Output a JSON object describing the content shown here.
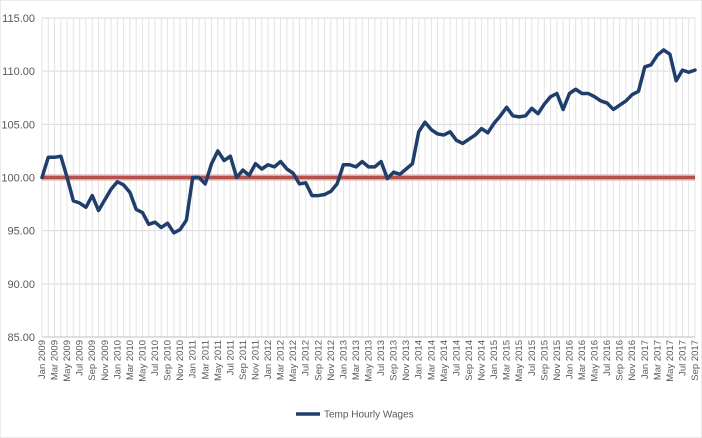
{
  "chart_data": {
    "type": "line",
    "title": "",
    "xlabel": "",
    "ylabel": "",
    "ylim": [
      85,
      115
    ],
    "y_ticks": [
      "85.00",
      "90.00",
      "95.00",
      "100.00",
      "105.00",
      "110.00",
      "115.00"
    ],
    "grid": "on",
    "legend_position": "bottom",
    "x_tick_labels": [
      "Jan 2009",
      "Mar 2009",
      "May 2009",
      "Jul 2009",
      "Sep 2009",
      "Nov 2009",
      "Jan 2010",
      "Mar 2010",
      "May 2010",
      "Jul 2010",
      "Sep 2010",
      "Nov 2010",
      "Jan 2011",
      "Mar 2011",
      "May 2011",
      "Jul 2011",
      "Sep 2011",
      "Nov 2011",
      "Jan 2012",
      "Mar 2012",
      "May 2012",
      "Jul 2012",
      "Sep 2012",
      "Nov 2012",
      "Jan 2013",
      "Mar 2013",
      "May 2013",
      "Jul 2013",
      "Sep 2013",
      "Nov 2013",
      "Jan 2014",
      "Mar 2014",
      "May 2014",
      "Jul 2014",
      "Sep 2014",
      "Nov 2014",
      "Jan 2015",
      "Mar 2015",
      "May 2015",
      "Jul 2015",
      "Sep 2015",
      "Nov 2015",
      "Jan 2016",
      "Mar 2016",
      "May 2016",
      "Jul 2016",
      "Sep 2016",
      "Nov 2016",
      "Jan 2017",
      "Mar 2017",
      "May 2017",
      "Jul 2017",
      "Sep 2017"
    ],
    "x": [
      "Jan 2009",
      "Feb 2009",
      "Mar 2009",
      "Apr 2009",
      "May 2009",
      "Jun 2009",
      "Jul 2009",
      "Aug 2009",
      "Sep 2009",
      "Oct 2009",
      "Nov 2009",
      "Dec 2009",
      "Jan 2010",
      "Feb 2010",
      "Mar 2010",
      "Apr 2010",
      "May 2010",
      "Jun 2010",
      "Jul 2010",
      "Aug 2010",
      "Sep 2010",
      "Oct 2010",
      "Nov 2010",
      "Dec 2010",
      "Jan 2011",
      "Feb 2011",
      "Mar 2011",
      "Apr 2011",
      "May 2011",
      "Jun 2011",
      "Jul 2011",
      "Aug 2011",
      "Sep 2011",
      "Oct 2011",
      "Nov 2011",
      "Dec 2011",
      "Jan 2012",
      "Feb 2012",
      "Mar 2012",
      "Apr 2012",
      "May 2012",
      "Jun 2012",
      "Jul 2012",
      "Aug 2012",
      "Sep 2012",
      "Oct 2012",
      "Nov 2012",
      "Dec 2012",
      "Jan 2013",
      "Feb 2013",
      "Mar 2013",
      "Apr 2013",
      "May 2013",
      "Jun 2013",
      "Jul 2013",
      "Aug 2013",
      "Sep 2013",
      "Oct 2013",
      "Nov 2013",
      "Dec 2013",
      "Jan 2014",
      "Feb 2014",
      "Mar 2014",
      "Apr 2014",
      "May 2014",
      "Jun 2014",
      "Jul 2014",
      "Aug 2014",
      "Sep 2014",
      "Oct 2014",
      "Nov 2014",
      "Dec 2014",
      "Jan 2015",
      "Feb 2015",
      "Mar 2015",
      "Apr 2015",
      "May 2015",
      "Jun 2015",
      "Jul 2015",
      "Aug 2015",
      "Sep 2015",
      "Oct 2015",
      "Nov 2015",
      "Dec 2015",
      "Jan 2016",
      "Feb 2016",
      "Mar 2016",
      "Apr 2016",
      "May 2016",
      "Jun 2016",
      "Jul 2016",
      "Aug 2016",
      "Sep 2016",
      "Oct 2016",
      "Nov 2016",
      "Dec 2016",
      "Jan 2017",
      "Feb 2017",
      "Mar 2017",
      "Apr 2017",
      "May 2017",
      "Jun 2017",
      "Jul 2017",
      "Aug 2017",
      "Sep 2017"
    ],
    "series": [
      {
        "name": "Temp Hourly Wages",
        "color": "#1f3e6b",
        "values": [
          100.0,
          101.9,
          101.9,
          102.0,
          100.0,
          97.8,
          97.6,
          97.2,
          98.3,
          96.9,
          97.9,
          98.9,
          99.6,
          99.3,
          98.6,
          97.0,
          96.7,
          95.6,
          95.8,
          95.3,
          95.7,
          94.8,
          95.1,
          96.0,
          100.0,
          100.0,
          99.4,
          101.3,
          102.5,
          101.6,
          102.0,
          100.0,
          100.7,
          100.2,
          101.3,
          100.8,
          101.2,
          101.0,
          101.5,
          100.8,
          100.4,
          99.4,
          99.5,
          98.3,
          98.3,
          98.4,
          98.7,
          99.4,
          101.2,
          101.2,
          101.0,
          101.5,
          101.0,
          101.0,
          101.5,
          99.9,
          100.5,
          100.3,
          100.8,
          101.3,
          104.3,
          105.2,
          104.5,
          104.1,
          104.0,
          104.3,
          103.5,
          103.2,
          103.6,
          104.0,
          104.6,
          104.2,
          105.1,
          105.8,
          106.6,
          105.8,
          105.7,
          105.8,
          106.5,
          106.0,
          106.9,
          107.6,
          107.9,
          106.4,
          107.9,
          108.3,
          107.9,
          107.9,
          107.6,
          107.2,
          107.0,
          106.4,
          106.8,
          107.2,
          107.8,
          108.1,
          110.4,
          110.6,
          111.5,
          112.0,
          111.6,
          109.1,
          110.1,
          109.9,
          110.1
        ]
      }
    ],
    "reference_line": {
      "value": 100.0,
      "color": "#b5504b"
    }
  }
}
